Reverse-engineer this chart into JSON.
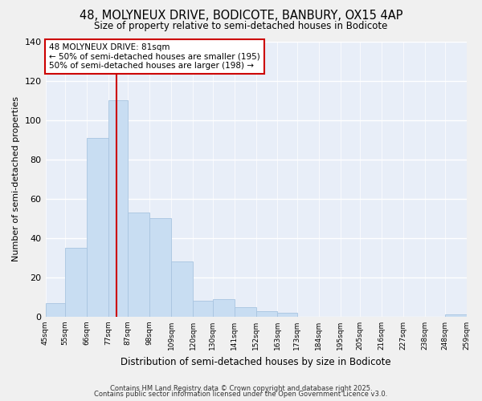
{
  "title": "48, MOLYNEUX DRIVE, BODICOTE, BANBURY, OX15 4AP",
  "subtitle": "Size of property relative to semi-detached houses in Bodicote",
  "xlabel": "Distribution of semi-detached houses by size in Bodicote",
  "ylabel": "Number of semi-detached properties",
  "bar_color": "#c8ddf2",
  "bar_edge_color": "#a8c4e0",
  "vline_x": 81,
  "vline_color": "#cc0000",
  "annotation_title": "48 MOLYNEUX DRIVE: 81sqm",
  "annotation_line1": "← 50% of semi-detached houses are smaller (195)",
  "annotation_line2": "50% of semi-detached houses are larger (198) →",
  "bin_edges": [
    45,
    55,
    66,
    77,
    87,
    98,
    109,
    120,
    130,
    141,
    152,
    163,
    173,
    184,
    195,
    205,
    216,
    227,
    238,
    248,
    259
  ],
  "bar_heights": [
    7,
    35,
    91,
    110,
    53,
    50,
    28,
    8,
    9,
    5,
    3,
    2,
    0,
    0,
    0,
    0,
    0,
    0,
    0,
    1
  ],
  "xlim_left": 45,
  "xlim_right": 259,
  "ylim_top": 140,
  "yticks": [
    0,
    20,
    40,
    60,
    80,
    100,
    120,
    140
  ],
  "tick_labels": [
    "45sqm",
    "55sqm",
    "66sqm",
    "77sqm",
    "87sqm",
    "98sqm",
    "109sqm",
    "120sqm",
    "130sqm",
    "141sqm",
    "152sqm",
    "163sqm",
    "173sqm",
    "184sqm",
    "195sqm",
    "205sqm",
    "216sqm",
    "227sqm",
    "238sqm",
    "248sqm",
    "259sqm"
  ],
  "footnote1": "Contains HM Land Registry data © Crown copyright and database right 2025.",
  "footnote2": "Contains public sector information licensed under the Open Government Licence v3.0.",
  "plot_bg_color": "#e8eef8",
  "fig_bg_color": "#f0f0f0",
  "grid_color": "#ffffff"
}
